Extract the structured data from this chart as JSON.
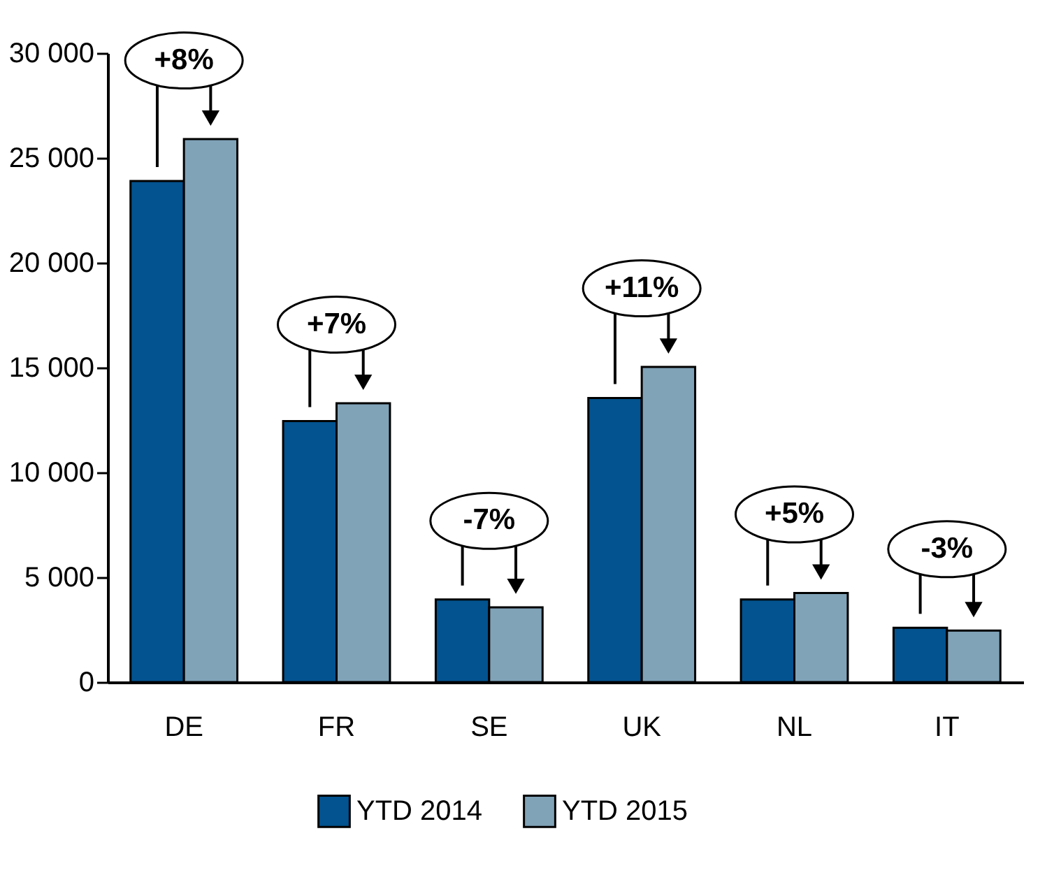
{
  "chart_data": {
    "type": "bar",
    "categories": [
      "DE",
      "FR",
      "SE",
      "UK",
      "NL",
      "IT"
    ],
    "series": [
      {
        "name": "YTD 2014",
        "color": "#02538f",
        "values": [
          23900,
          12450,
          3940,
          13550,
          3940,
          2590
        ]
      },
      {
        "name": "YTD 2015",
        "color": "#80a3b8",
        "values": [
          25900,
          13300,
          3570,
          15030,
          4250,
          2460
        ]
      }
    ],
    "ylim": [
      0,
      30000
    ],
    "yticks": [
      {
        "value": 0,
        "label": "0"
      },
      {
        "value": 5000,
        "label": "5 000"
      },
      {
        "value": 10000,
        "label": "10 000"
      },
      {
        "value": 15000,
        "label": "15 000"
      },
      {
        "value": 20000,
        "label": "20 000"
      },
      {
        "value": 25000,
        "label": "25 000"
      },
      {
        "value": 30000,
        "label": "30 000"
      }
    ],
    "annotations": [
      "+8%",
      "+7%",
      "-7%",
      "+11%",
      "+5%",
      "-3%"
    ],
    "legend": "bottom",
    "grid": false
  }
}
